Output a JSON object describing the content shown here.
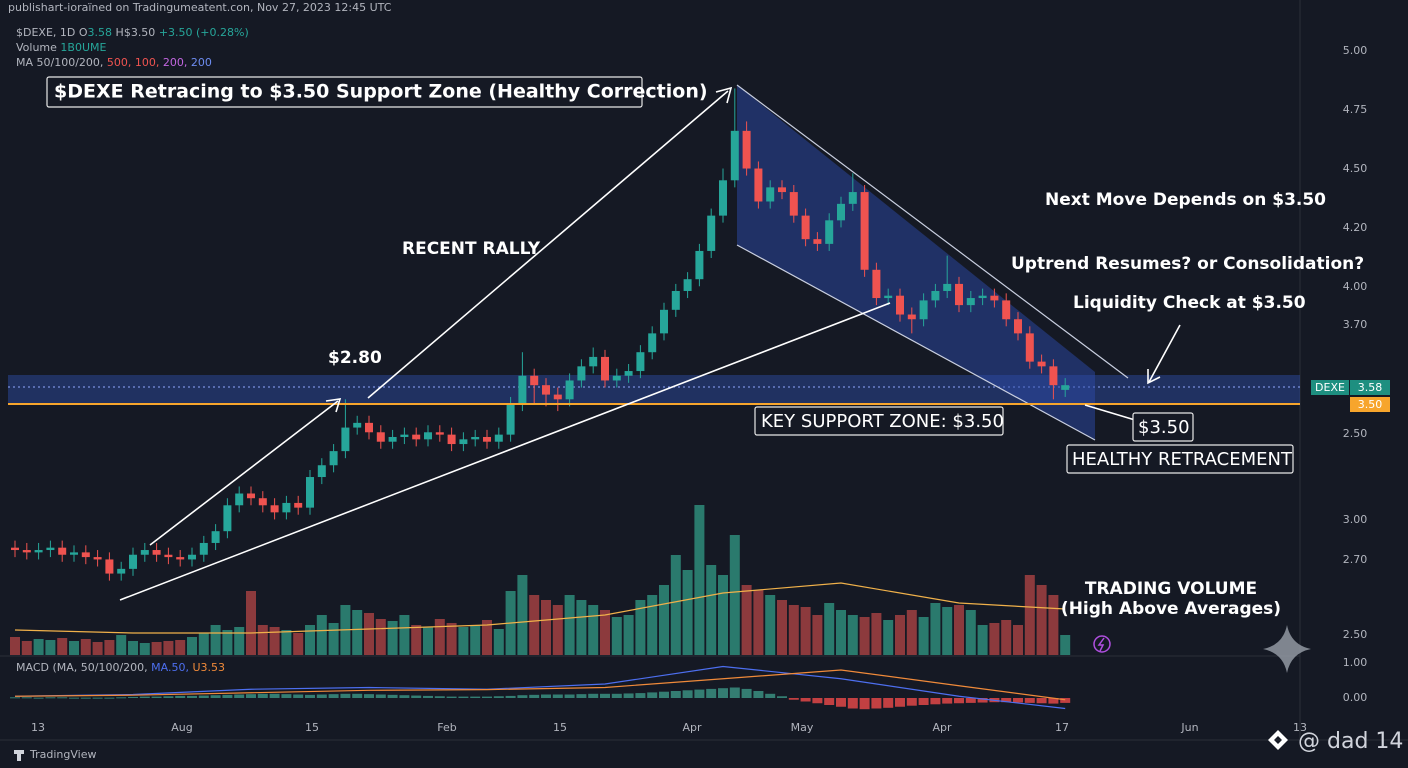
{
  "header": {
    "publisher": "publishart-ioraïned on Tradingumeatent.con, Nov 27, 2023 12:45 UTC"
  },
  "legend": {
    "line1": [
      "$DEXE, 1D",
      "O",
      "3.58",
      "H$3.50",
      "+3.50 (+0.28%)"
    ],
    "line2": [
      "Volume",
      "1B0UME"
    ],
    "line3": [
      "MA 50/100/200,",
      "500,",
      "100,",
      "200,",
      "200"
    ],
    "macd": [
      "MACD (MA, 50/100/200,",
      "MA.50,",
      "U3.53"
    ]
  },
  "annotations": {
    "title": "$DEXE Retracing to $3.50 Support Zone (Healthy Correction)",
    "rally": "RECENT RALLY",
    "level_280": "$2.80",
    "next_move": "Next Move Depends on $3.50",
    "question": "Uptrend Resumes? or Consolidation?",
    "liquidity": "Liquidity Check at $3.50",
    "key_support": "KEY SUPPORT ZONE: $3.50",
    "level_350": "$3.50",
    "healthy": "HEALTHY RETRACEMENT",
    "volume_title": "TRADING VOLUME",
    "volume_sub": "(High Above Averages)"
  },
  "price_axis": [
    "5.00",
    "4.75",
    "4.50",
    "4.20",
    "4.00",
    "3.70",
    "2.50",
    "3.00",
    "2.70",
    "2.50",
    "1.00",
    "0.00"
  ],
  "price_tags": {
    "symbol": "DEXE",
    "last": "3.58",
    "support": "3.50"
  },
  "time_axis": [
    "13",
    "Aug",
    "15",
    "Feb",
    "15",
    "Apr",
    "May",
    "Apr",
    "17",
    "Jun",
    "13"
  ],
  "footer": {
    "brand": "TradingView",
    "watermark": "@ dad 14"
  },
  "chart_data": [
    {
      "type": "candlestick",
      "ylim": [
        2.43,
        5.05
      ],
      "up_color": "#26a69a",
      "down_color": "#ef5350",
      "open": [
        2.89,
        2.88,
        2.87,
        2.88,
        2.89,
        2.86,
        2.87,
        2.85,
        2.84,
        2.78,
        2.8,
        2.86,
        2.88,
        2.86,
        2.85,
        2.84,
        2.86,
        2.91,
        2.96,
        3.07,
        3.12,
        3.1,
        3.07,
        3.04,
        3.08,
        3.06,
        3.19,
        3.24,
        3.3,
        3.4,
        3.42,
        3.38,
        3.34,
        3.36,
        3.37,
        3.35,
        3.38,
        3.37,
        3.33,
        3.35,
        3.36,
        3.34,
        3.37,
        3.5,
        3.62,
        3.58,
        3.54,
        3.52,
        3.6,
        3.66,
        3.7,
        3.6,
        3.62,
        3.64,
        3.72,
        3.8,
        3.9,
        3.98,
        4.03,
        4.15,
        4.3,
        4.45,
        4.66,
        4.5,
        4.36,
        4.42,
        4.4,
        4.3,
        4.2,
        4.18,
        4.28,
        4.35,
        4.4,
        4.07,
        3.95,
        3.96,
        3.88,
        3.86,
        3.94,
        3.98,
        4.01,
        3.92,
        3.95,
        3.96,
        3.94,
        3.86,
        3.8,
        3.68,
        3.66,
        3.56
      ],
      "high": [
        2.92,
        2.91,
        2.91,
        2.92,
        2.92,
        2.9,
        2.9,
        2.88,
        2.87,
        2.83,
        2.89,
        2.91,
        2.91,
        2.89,
        2.88,
        2.89,
        2.94,
        2.99,
        3.1,
        3.15,
        3.15,
        3.13,
        3.1,
        3.11,
        3.11,
        3.22,
        3.27,
        3.33,
        3.52,
        3.45,
        3.45,
        3.41,
        3.39,
        3.4,
        3.4,
        3.41,
        3.41,
        3.4,
        3.38,
        3.39,
        3.39,
        3.4,
        3.53,
        3.72,
        3.65,
        3.61,
        3.57,
        3.63,
        3.69,
        3.74,
        3.73,
        3.65,
        3.67,
        3.75,
        3.83,
        3.93,
        4.01,
        4.06,
        4.18,
        4.33,
        4.5,
        4.84,
        4.7,
        4.53,
        4.45,
        4.45,
        4.43,
        4.33,
        4.23,
        4.31,
        4.38,
        4.48,
        4.43,
        4.1,
        3.99,
        3.99,
        3.91,
        3.97,
        4.01,
        4.13,
        4.04,
        3.98,
        3.99,
        3.99,
        3.97,
        3.89,
        3.83,
        3.71,
        3.69,
        3.61
      ],
      "low": [
        2.85,
        2.84,
        2.84,
        2.85,
        2.83,
        2.83,
        2.82,
        2.81,
        2.75,
        2.75,
        2.77,
        2.83,
        2.83,
        2.82,
        2.81,
        2.81,
        2.83,
        2.88,
        2.93,
        3.04,
        3.07,
        3.04,
        3.01,
        3.01,
        3.03,
        3.03,
        3.16,
        3.21,
        3.27,
        3.37,
        3.35,
        3.31,
        3.31,
        3.33,
        3.32,
        3.32,
        3.34,
        3.3,
        3.3,
        3.32,
        3.31,
        3.31,
        3.34,
        3.47,
        3.5,
        3.49,
        3.47,
        3.49,
        3.57,
        3.63,
        3.57,
        3.57,
        3.59,
        3.61,
        3.69,
        3.77,
        3.87,
        3.95,
        4.0,
        4.12,
        4.27,
        4.42,
        4.47,
        4.33,
        4.33,
        4.37,
        4.27,
        4.17,
        4.15,
        4.15,
        4.25,
        4.32,
        4.04,
        3.92,
        3.92,
        3.85,
        3.8,
        3.83,
        3.91,
        3.95,
        3.89,
        3.89,
        3.92,
        3.91,
        3.83,
        3.77,
        3.65,
        3.63,
        3.52,
        3.53
      ],
      "close": [
        2.88,
        2.87,
        2.88,
        2.89,
        2.86,
        2.87,
        2.85,
        2.84,
        2.78,
        2.8,
        2.86,
        2.88,
        2.86,
        2.85,
        2.84,
        2.86,
        2.91,
        2.96,
        3.07,
        3.12,
        3.1,
        3.07,
        3.04,
        3.08,
        3.06,
        3.19,
        3.24,
        3.3,
        3.4,
        3.42,
        3.38,
        3.34,
        3.36,
        3.37,
        3.35,
        3.38,
        3.37,
        3.33,
        3.35,
        3.36,
        3.34,
        3.37,
        3.5,
        3.62,
        3.58,
        3.54,
        3.52,
        3.6,
        3.66,
        3.7,
        3.6,
        3.62,
        3.64,
        3.72,
        3.8,
        3.9,
        3.98,
        4.03,
        4.15,
        4.3,
        4.45,
        4.66,
        4.5,
        4.36,
        4.42,
        4.4,
        4.3,
        4.2,
        4.18,
        4.28,
        4.35,
        4.4,
        4.07,
        3.95,
        3.96,
        3.88,
        3.86,
        3.94,
        3.98,
        4.01,
        3.92,
        3.95,
        3.96,
        3.94,
        3.86,
        3.8,
        3.68,
        3.66,
        3.58,
        3.58
      ]
    },
    {
      "type": "bar",
      "ylim": [
        0,
        185
      ],
      "up_color": "#2a7a6d",
      "down_color": "#8c3a3d",
      "ma_color": "#f0b14a",
      "values": [
        18,
        14,
        16,
        15,
        17,
        14,
        16,
        13,
        15,
        20,
        14,
        12,
        13,
        14,
        15,
        18,
        22,
        30,
        25,
        28,
        64,
        30,
        28,
        25,
        22,
        30,
        40,
        32,
        50,
        45,
        42,
        36,
        34,
        40,
        30,
        28,
        36,
        32,
        28,
        30,
        35,
        26,
        64,
        80,
        60,
        55,
        50,
        60,
        55,
        50,
        45,
        38,
        40,
        55,
        60,
        70,
        100,
        85,
        150,
        90,
        80,
        120,
        70,
        65,
        60,
        55,
        50,
        48,
        40,
        52,
        45,
        40,
        38,
        42,
        35,
        40,
        45,
        38,
        52,
        48,
        50,
        45,
        30,
        32,
        35,
        30,
        80,
        70,
        60,
        20
      ],
      "ma_x": [
        0,
        10,
        20,
        30,
        40,
        50,
        60,
        70,
        80,
        89
      ],
      "ma_values": [
        25,
        22,
        22,
        26,
        30,
        40,
        62,
        72,
        52,
        46
      ]
    },
    {
      "type": "macd",
      "ylim": [
        -1.2,
        1.2
      ],
      "up_color": "#3a8f80",
      "down_color": "#e04848",
      "macd_color": "#4d6ff0",
      "signal_color": "#f08a3a",
      "values": [
        0.02,
        0.02,
        0.01,
        0.02,
        0.02,
        0.01,
        0.01,
        0.01,
        0.01,
        0.02,
        0.03,
        0.04,
        0.04,
        0.05,
        0.06,
        0.06,
        0.07,
        0.08,
        0.09,
        0.1,
        0.11,
        0.12,
        0.12,
        0.11,
        0.1,
        0.09,
        0.1,
        0.11,
        0.12,
        0.12,
        0.11,
        0.1,
        0.09,
        0.08,
        0.07,
        0.06,
        0.05,
        0.04,
        0.04,
        0.04,
        0.04,
        0.05,
        0.06,
        0.08,
        0.09,
        0.1,
        0.1,
        0.1,
        0.11,
        0.12,
        0.12,
        0.12,
        0.13,
        0.14,
        0.16,
        0.18,
        0.2,
        0.22,
        0.24,
        0.26,
        0.28,
        0.3,
        0.26,
        0.2,
        0.12,
        0.05,
        -0.05,
        -0.1,
        -0.15,
        -0.2,
        -0.25,
        -0.3,
        -0.32,
        -0.3,
        -0.28,
        -0.25,
        -0.22,
        -0.2,
        -0.18,
        -0.16,
        -0.15,
        -0.14,
        -0.13,
        -0.12,
        -0.12,
        -0.13,
        -0.14,
        -0.15,
        -0.16,
        -0.14
      ],
      "line_x": [
        0,
        10,
        20,
        30,
        40,
        50,
        60,
        70,
        80,
        89
      ],
      "macd_line": [
        0.05,
        0.1,
        0.25,
        0.3,
        0.25,
        0.4,
        0.9,
        0.55,
        0.05,
        -0.3
      ],
      "signal_line": [
        0.05,
        0.08,
        0.15,
        0.22,
        0.24,
        0.3,
        0.55,
        0.8,
        0.35,
        -0.05
      ]
    }
  ]
}
